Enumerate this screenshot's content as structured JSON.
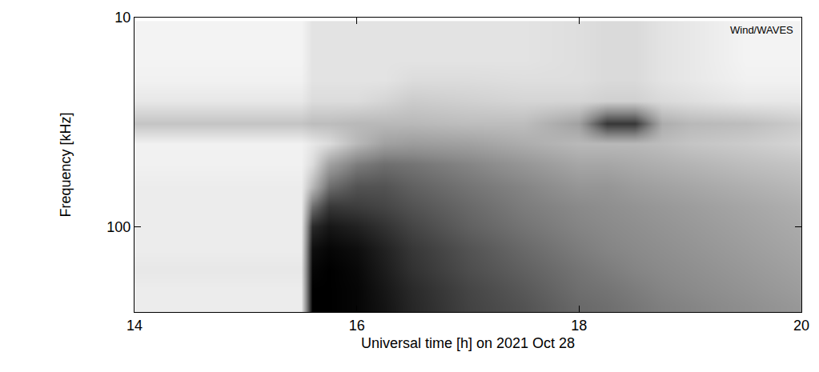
{
  "chart_data": {
    "type": "heatmap",
    "annotation": "Wind/WAVES",
    "x_label": "Universal time [h] on 2021 Oct 28",
    "y_label": "Frequency [kHz]",
    "log": "y",
    "xlim": [
      14,
      20
    ],
    "xticks": [
      14,
      16,
      18,
      20
    ],
    "ylim": [
      255,
      10
    ],
    "yticks": [
      10,
      100
    ],
    "zlim": [
      0,
      100
    ],
    "x": [
      14,
      14.5,
      15,
      15.4,
      15.5,
      15.6,
      15.75,
      16,
      16.25,
      16.5,
      17,
      17.5,
      18,
      18.25,
      18.5,
      18.75,
      19,
      19.5,
      20
    ],
    "y": [
      12,
      16,
      20,
      25,
      32,
      40,
      50,
      64,
      80,
      100,
      128,
      160,
      200,
      240
    ],
    "z": [
      [
        5,
        5,
        5,
        5,
        5,
        12,
        12,
        12,
        12,
        12,
        12,
        12,
        14,
        16,
        16,
        12,
        10,
        5,
        5
      ],
      [
        5,
        5,
        5,
        5,
        5,
        12,
        12,
        12,
        12,
        12,
        12,
        12,
        14,
        16,
        16,
        12,
        10,
        5,
        5
      ],
      [
        6,
        6,
        6,
        6,
        6,
        12,
        12,
        12,
        12,
        15,
        15,
        14,
        14,
        16,
        16,
        12,
        10,
        6,
        6
      ],
      [
        10,
        10,
        10,
        10,
        10,
        15,
        15,
        15,
        18,
        22,
        20,
        18,
        18,
        20,
        20,
        16,
        14,
        10,
        10
      ],
      [
        25,
        25,
        25,
        25,
        25,
        28,
        28,
        30,
        30,
        30,
        28,
        28,
        40,
        80,
        80,
        35,
        30,
        28,
        22
      ],
      [
        6,
        6,
        6,
        6,
        6,
        10,
        15,
        30,
        40,
        42,
        40,
        35,
        30,
        30,
        30,
        28,
        25,
        22,
        18
      ],
      [
        6,
        6,
        6,
        6,
        6,
        15,
        40,
        55,
        60,
        58,
        52,
        45,
        38,
        38,
        36,
        34,
        32,
        28,
        25
      ],
      [
        8,
        8,
        8,
        8,
        8,
        30,
        60,
        70,
        70,
        65,
        58,
        52,
        45,
        45,
        42,
        40,
        38,
        34,
        30
      ],
      [
        8,
        8,
        8,
        8,
        8,
        60,
        80,
        78,
        75,
        70,
        62,
        55,
        50,
        48,
        46,
        44,
        42,
        38,
        34
      ],
      [
        8,
        8,
        8,
        8,
        8,
        85,
        92,
        88,
        82,
        75,
        65,
        58,
        52,
        50,
        48,
        46,
        44,
        40,
        36
      ],
      [
        8,
        8,
        8,
        8,
        8,
        95,
        98,
        95,
        88,
        80,
        70,
        62,
        55,
        52,
        50,
        48,
        46,
        42,
        38
      ],
      [
        10,
        10,
        10,
        10,
        10,
        98,
        100,
        97,
        90,
        82,
        72,
        65,
        58,
        55,
        52,
        50,
        48,
        44,
        40
      ],
      [
        8,
        8,
        8,
        8,
        8,
        100,
        100,
        98,
        92,
        85,
        75,
        68,
        60,
        58,
        55,
        52,
        50,
        46,
        42
      ],
      [
        8,
        8,
        8,
        8,
        8,
        100,
        100,
        98,
        93,
        86,
        76,
        70,
        62,
        60,
        57,
        54,
        52,
        48,
        44
      ]
    ]
  }
}
